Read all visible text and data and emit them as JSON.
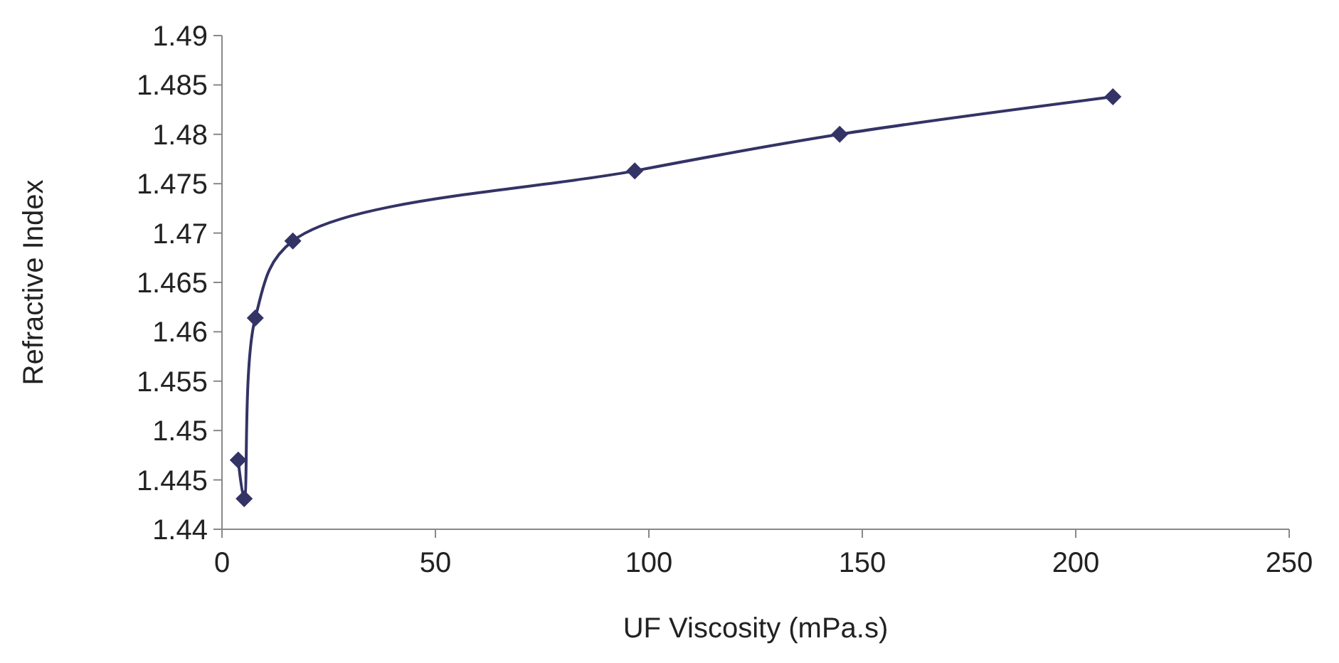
{
  "chart_data": {
    "type": "line",
    "xlabel": "UF Viscosity (mPa.s)",
    "ylabel": "Refractive Index",
    "x": [
      3.8,
      5.2,
      7.8,
      16.6,
      96.7,
      144.7,
      208.7
    ],
    "series": [
      {
        "color": "#333366",
        "values": [
          1.447,
          1.4431,
          1.4614,
          1.4692,
          1.4763,
          1.48,
          1.4838
        ]
      }
    ],
    "marker": "diamond",
    "line_style": "solid",
    "xlim": [
      0,
      250
    ],
    "xticks": [
      0,
      50,
      100,
      150,
      200,
      250
    ],
    "ylim": [
      1.44,
      1.49
    ],
    "yticks": [
      1.44,
      1.445,
      1.45,
      1.455,
      1.46,
      1.465,
      1.47,
      1.475,
      1.48,
      1.485,
      1.49
    ],
    "grid": false
  }
}
